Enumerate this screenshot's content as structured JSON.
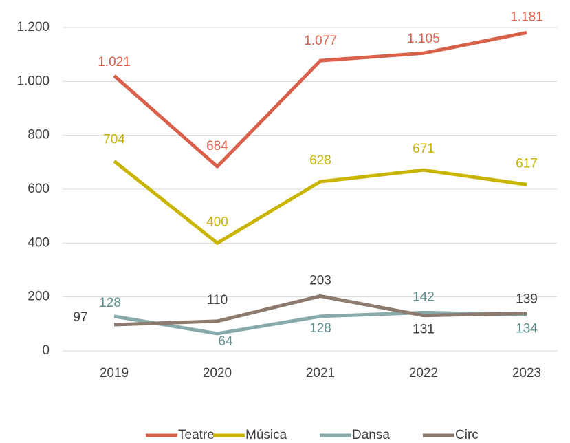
{
  "chart_data": {
    "type": "line",
    "categories": [
      "2019",
      "2020",
      "2021",
      "2022",
      "2023"
    ],
    "series": [
      {
        "name": "Teatre",
        "color": "#d9604a",
        "values": [
          1021,
          684,
          1077,
          1105,
          1181
        ],
        "value_labels": [
          "1.021",
          "684",
          "1.077",
          "1.105",
          "1.181"
        ]
      },
      {
        "name": "Música",
        "color": "#c9b400",
        "values": [
          704,
          400,
          628,
          671,
          617
        ]
      },
      {
        "name": "Dansa",
        "color": "#86abaa",
        "values": [
          128,
          64,
          128,
          142,
          134
        ]
      },
      {
        "name": "Circ",
        "color": "#8c7a6e",
        "values": [
          97,
          110,
          203,
          131,
          139
        ]
      }
    ],
    "ylim": [
      0,
      1200
    ],
    "yticks": [
      0,
      200,
      400,
      600,
      800,
      {
        "value": 1000,
        "label": "1.000"
      },
      {
        "value": 1200,
        "label": "1.200"
      }
    ],
    "grid": true,
    "legend": "bottom"
  }
}
